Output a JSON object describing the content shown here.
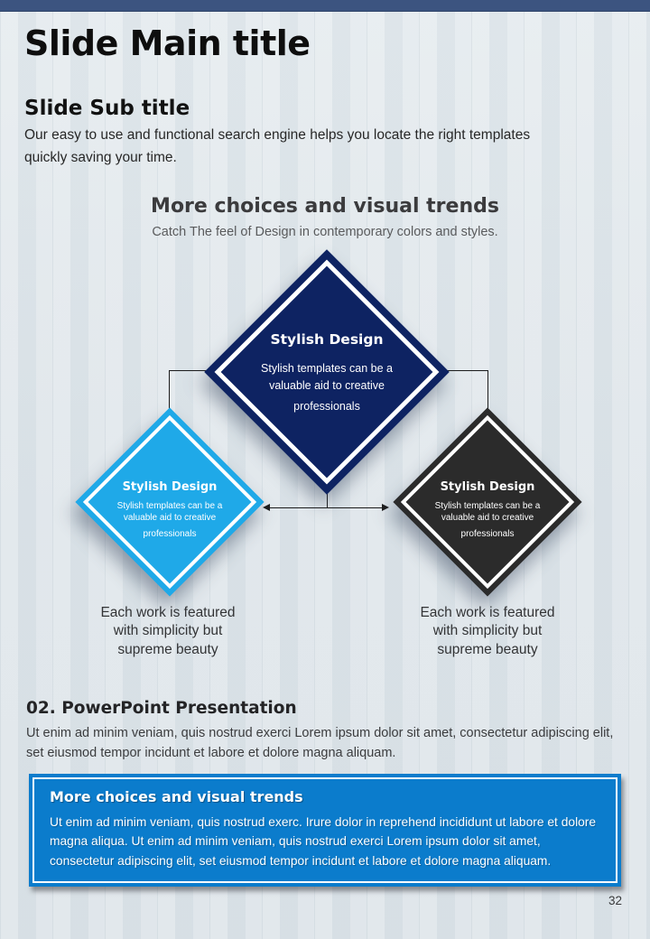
{
  "page": {
    "number": "32",
    "background_color": "#dfe5ea",
    "accent_bar_color": "#3c5480"
  },
  "header": {
    "main_title": "Slide Main title"
  },
  "intro": {
    "sub_title": "Slide Sub title",
    "paragraph": "Our easy to use and functional search engine helps you locate the right templates quickly saving your time."
  },
  "diagram": {
    "heading": "More choices and visual trends",
    "subheading": "Catch The feel of Design in contemporary colors and styles.",
    "nodes": [
      {
        "position": "top",
        "title": "Stylish Design",
        "body_lines": [
          "Stylish templates can be a valuable aid to creative",
          "professionals"
        ],
        "color": "#0e2362"
      },
      {
        "position": "left",
        "title": "Stylish Design",
        "body_lines": [
          "Stylish templates can be a valuable aid to creative",
          "professionals"
        ],
        "color": "#1fa9e8"
      },
      {
        "position": "right",
        "title": "Stylish Design",
        "body_lines": [
          "Stylish templates can be a valuable aid to creative",
          "professionals"
        ],
        "color": "#2b2b2b"
      }
    ],
    "captions": [
      "Each work is featured with simplicity but supreme beauty",
      "Each work is featured with simplicity but supreme beauty"
    ]
  },
  "section": {
    "heading": "02. PowerPoint Presentation",
    "paragraph": "Ut enim ad minim veniam, quis nostrud exerci  Lorem ipsum dolor sit amet, consectetur adipiscing elit, set eiusmod tempor incidunt et labore et dolore magna aliquam."
  },
  "callout": {
    "heading": "More choices and visual trends",
    "body": "Ut enim ad minim veniam, quis nostrud exerc. Irure dolor in reprehend incididunt ut labore et dolore magna aliqua. Ut enim ad minim veniam, quis nostrud exerci  Lorem ipsum dolor sit amet, consectetur adipiscing elit, set eiusmod tempor incidunt et labore et dolore magna aliquam.",
    "background_color": "#0b7ccc"
  }
}
